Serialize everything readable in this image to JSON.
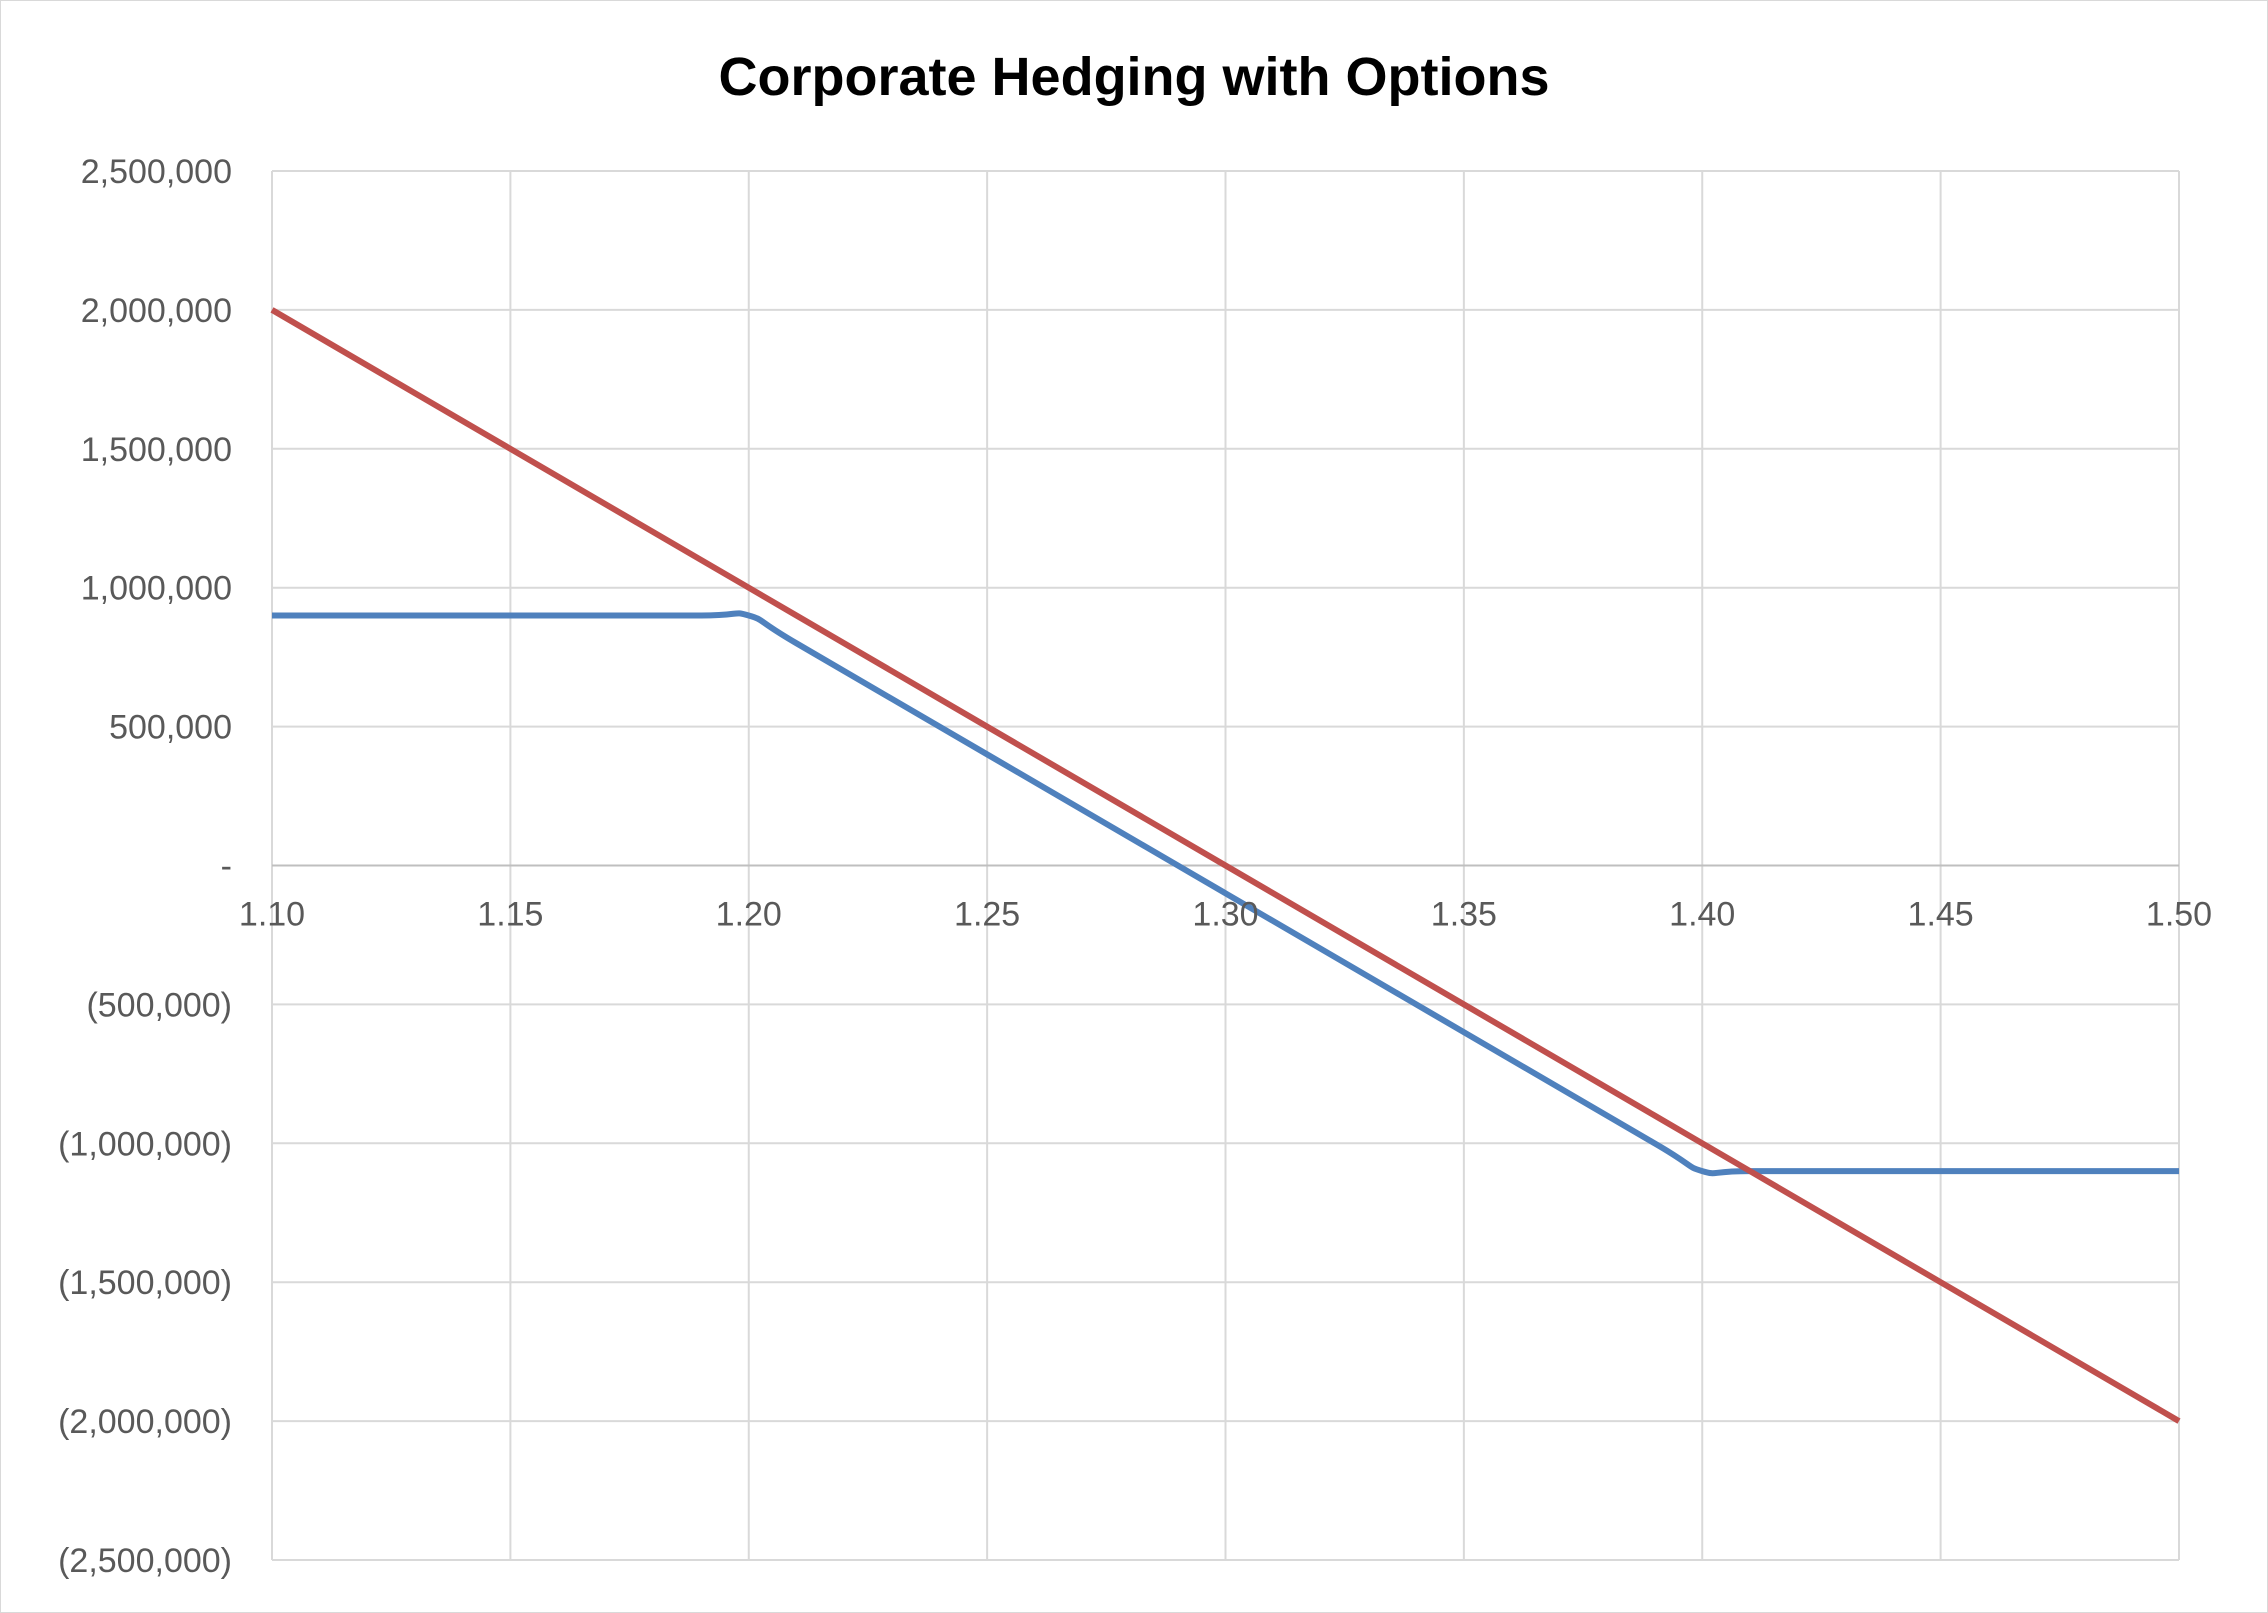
{
  "chart_data": {
    "type": "line",
    "title": "Corporate Hedging with Options",
    "xlabel": "",
    "ylabel": "",
    "x": [
      1.1,
      1.15,
      1.19,
      1.2,
      1.21,
      1.25,
      1.3,
      1.35,
      1.39,
      1.4,
      1.41,
      1.45,
      1.5
    ],
    "x_tick_labels": [
      "1.10",
      "1.15",
      "1.20",
      "1.25",
      "1.30",
      "1.35",
      "1.40",
      "1.45",
      "1.50"
    ],
    "x_ticks": [
      1.1,
      1.15,
      1.2,
      1.25,
      1.3,
      1.35,
      1.4,
      1.45,
      1.5
    ],
    "xlim": [
      1.1,
      1.5
    ],
    "y_tick_labels": [
      "2,500,000",
      "2,000,000",
      "1,500,000",
      "1,000,000",
      "500,000",
      "-",
      "(500,000)",
      "(1,000,000)",
      "(1,500,000)",
      "(2,000,000)",
      "(2,500,000)"
    ],
    "y_ticks": [
      2500000,
      2000000,
      1500000,
      1000000,
      500000,
      0,
      -500000,
      -1000000,
      -1500000,
      -2000000,
      -2500000
    ],
    "ylim": [
      -2500000,
      2500000
    ],
    "grid": true,
    "legend": "none",
    "series": [
      {
        "color": "#4f81bd",
        "values": [
          900000,
          900000,
          900000,
          900000,
          800000,
          400000,
          -100000,
          -600000,
          -1000000,
          -1100000,
          -1100000,
          -1100000,
          -1100000
        ]
      },
      {
        "color": "#c0504d",
        "values": [
          2000000,
          1500000,
          1100000,
          1000000,
          900000,
          500000,
          0,
          -500000,
          -900000,
          -1000000,
          -1100000,
          -1500000,
          -2000000
        ]
      }
    ]
  }
}
